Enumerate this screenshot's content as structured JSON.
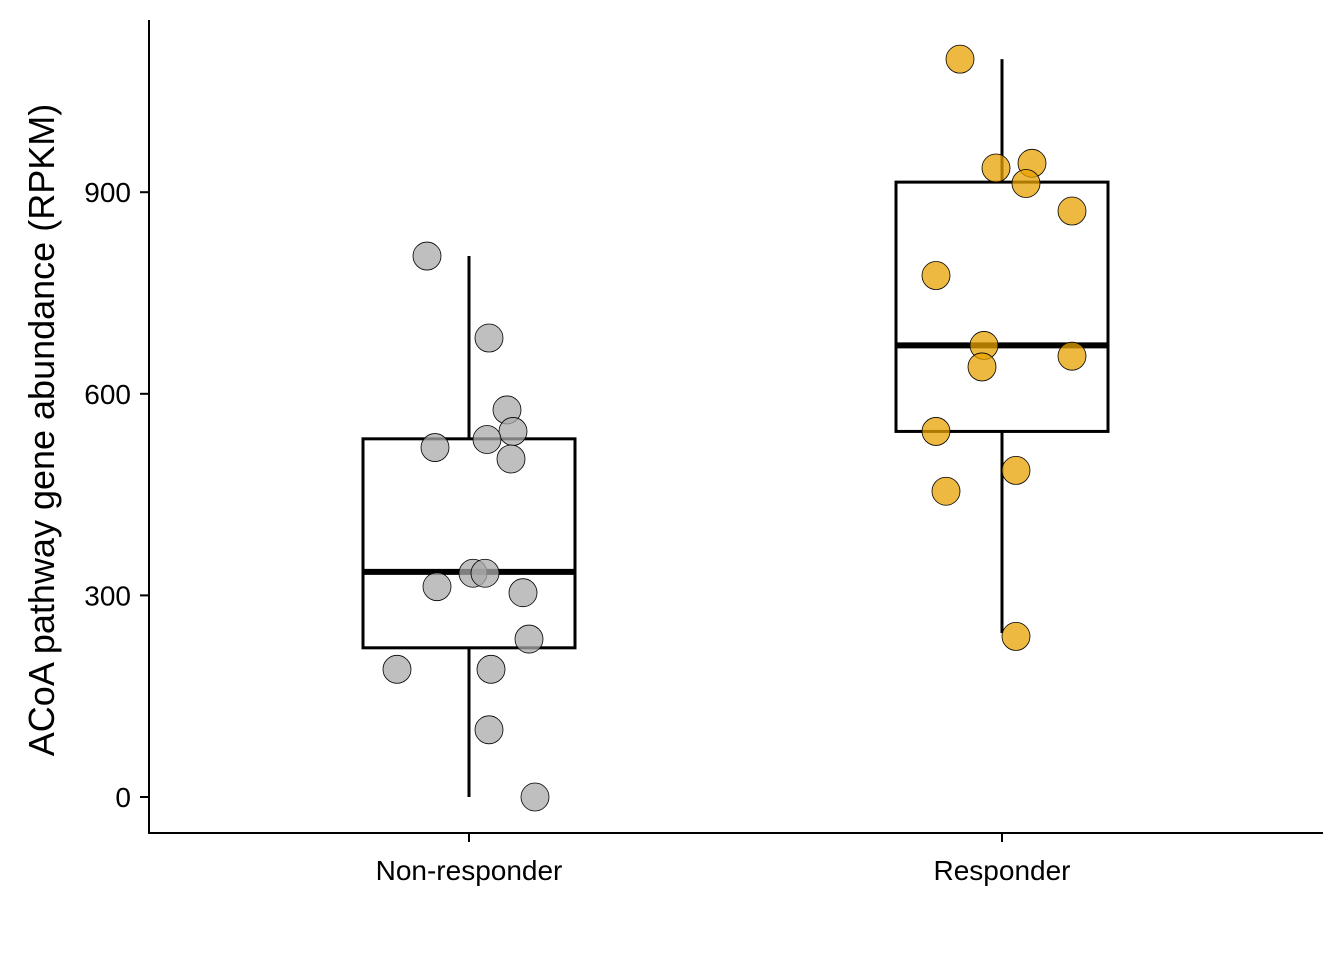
{
  "chart_data": {
    "type": "box",
    "title": "",
    "xlabel": "",
    "ylabel": "ACoA pathway gene abundance (RPKM)",
    "ylim": [
      -55,
      1145
    ],
    "yticks": [
      0,
      300,
      600,
      900
    ],
    "grid": false,
    "legend": "none",
    "categories": [
      "Non-responder",
      "Responder"
    ],
    "groups": [
      {
        "name": "Non-responder",
        "color": "#A9A9A9",
        "box": {
          "min": 0,
          "q1": 222,
          "median": 335,
          "q3": 533,
          "max": 805
        },
        "points": [
          {
            "y": 805,
            "jitter": -0.21
          },
          {
            "y": 683,
            "jitter": 0.1
          },
          {
            "y": 576,
            "jitter": 0.19
          },
          {
            "y": 544,
            "jitter": 0.22
          },
          {
            "y": 532,
            "jitter": 0.09
          },
          {
            "y": 520,
            "jitter": -0.17
          },
          {
            "y": 503,
            "jitter": 0.21
          },
          {
            "y": 333,
            "jitter": 0.02
          },
          {
            "y": 333,
            "jitter": 0.08
          },
          {
            "y": 313,
            "jitter": -0.16
          },
          {
            "y": 304,
            "jitter": 0.27
          },
          {
            "y": 235,
            "jitter": 0.3
          },
          {
            "y": 190,
            "jitter": -0.36
          },
          {
            "y": 190,
            "jitter": 0.11
          },
          {
            "y": 100,
            "jitter": 0.1
          },
          {
            "y": 0,
            "jitter": 0.33
          }
        ]
      },
      {
        "name": "Responder",
        "color": "#E8A200",
        "box": {
          "min": 244,
          "q1": 544,
          "median": 672,
          "q3": 915,
          "max": 1098
        },
        "points": [
          {
            "y": 1098,
            "jitter": -0.21
          },
          {
            "y": 943,
            "jitter": 0.15
          },
          {
            "y": 936,
            "jitter": -0.03
          },
          {
            "y": 913,
            "jitter": 0.12
          },
          {
            "y": 872,
            "jitter": 0.35
          },
          {
            "y": 776,
            "jitter": -0.33
          },
          {
            "y": 672,
            "jitter": -0.09
          },
          {
            "y": 656,
            "jitter": 0.35
          },
          {
            "y": 640,
            "jitter": -0.1
          },
          {
            "y": 544,
            "jitter": -0.33
          },
          {
            "y": 486,
            "jitter": 0.07
          },
          {
            "y": 455,
            "jitter": -0.28
          },
          {
            "y": 239,
            "jitter": 0.07
          }
        ]
      }
    ]
  }
}
